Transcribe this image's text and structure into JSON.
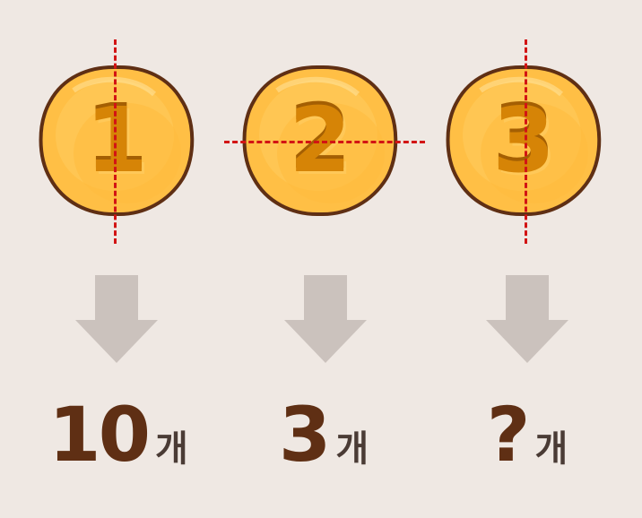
{
  "coins": [
    {
      "label": "1",
      "answer": "10",
      "unit": "개"
    },
    {
      "label": "2",
      "answer": "3",
      "unit": "개"
    },
    {
      "label": "3",
      "answer": "?",
      "unit": "개"
    }
  ],
  "colors": {
    "background": "#efe8e3",
    "coin_fill": "#ffbf45",
    "coin_outline": "#5f2f14",
    "digit": "#d68406",
    "guide_line": "#d21414",
    "arrow": "#cbc2bd",
    "answer_number": "#5f2f14",
    "answer_unit": "#4a3b35"
  },
  "icons": {
    "coin": "coin-icon",
    "arrow": "arrow-down-icon",
    "cut_line": "dashed-line"
  }
}
